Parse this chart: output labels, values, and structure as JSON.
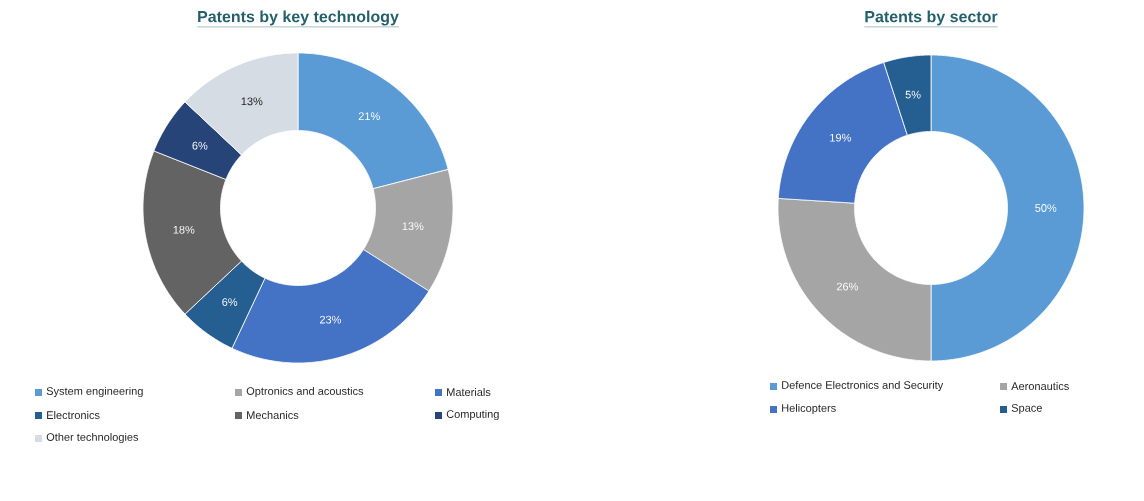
{
  "chart_data": [
    {
      "type": "donut",
      "title": "Patents by key technology",
      "legend": "bottom",
      "categories": [
        "System engineering",
        "Optronics and acoustics",
        "Materials",
        "Electronics",
        "Mechanics",
        "Computing",
        "Other technologies"
      ],
      "values": [
        21,
        13,
        23,
        6,
        18,
        6,
        13
      ],
      "value_labels": [
        "21%",
        "13%",
        "23%",
        "6%",
        "18%",
        "6%",
        "13%"
      ],
      "colors": [
        "#5b9bd5",
        "#a5a5a5",
        "#4472c4",
        "#255e91",
        "#636363",
        "#264478",
        "#d6dce4"
      ]
    },
    {
      "type": "donut",
      "title": "Patents by sector",
      "legend": "bottom",
      "categories": [
        "Defence Electronics and Security",
        "Aeronautics",
        "Helicopters",
        "Space"
      ],
      "values": [
        50,
        26,
        19,
        5
      ],
      "value_labels": [
        "50%",
        "26%",
        "19%",
        "5%"
      ],
      "colors": [
        "#5b9bd5",
        "#a5a5a5",
        "#4472c4",
        "#255e91"
      ]
    }
  ]
}
